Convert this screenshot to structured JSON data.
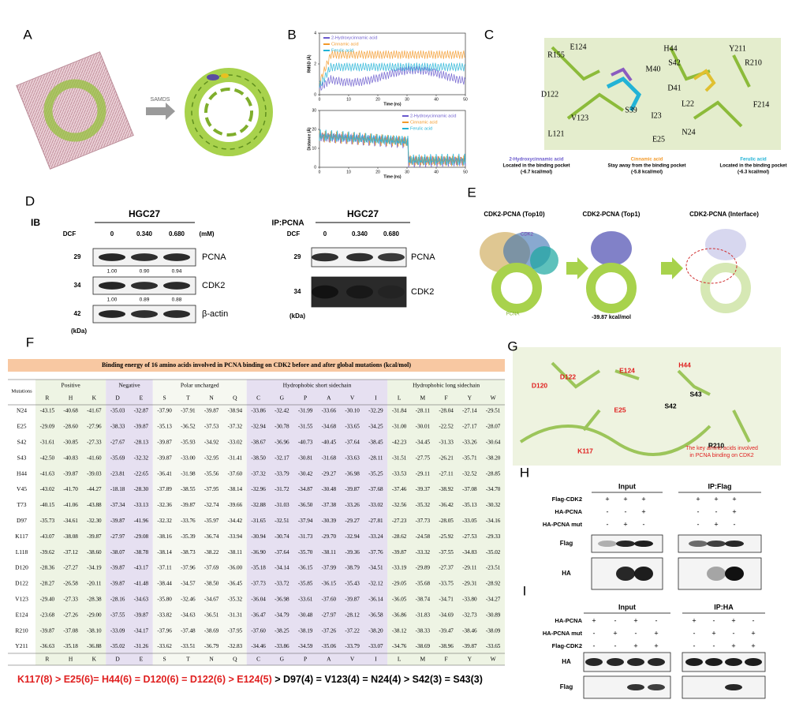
{
  "panel_labels": [
    "A",
    "B",
    "C",
    "D",
    "E",
    "F",
    "G",
    "H",
    "I"
  ],
  "panel_a": {
    "arrow_label": "SAMDS"
  },
  "panel_b": {
    "legend": [
      {
        "name": "2-Hydroxycinnamic acid",
        "color": "#6a5acd"
      },
      {
        "name": "Cinnamic acid",
        "color": "#f39a2b"
      },
      {
        "name": "Ferulic acid",
        "color": "#22b3d6"
      }
    ],
    "top": {
      "y_label": "RMSD (Å)",
      "x_label": "Time (ns)",
      "xticks": [
        0,
        10,
        20,
        30,
        40,
        50
      ],
      "yticks": [
        0,
        2,
        4
      ]
    },
    "bottom": {
      "y_label": "Distance (Å)",
      "x_label": "Time (ns)",
      "xticks": [
        0,
        10,
        20,
        30,
        40,
        50
      ],
      "yticks": [
        0,
        10,
        20,
        30
      ]
    }
  },
  "panel_c": {
    "residues": [
      "R155",
      "E124",
      "H44",
      "S42",
      "Y211",
      "R210",
      "M40",
      "D41",
      "D122",
      "L22",
      "F214",
      "S39",
      "I23",
      "V123",
      "L121",
      "E25",
      "N24"
    ],
    "captions": [
      {
        "name": "2-Hydroxycinnamic acid",
        "color": "#6a5acd",
        "lines": [
          "Located in the binding pocket",
          "(-6.7 kcal/mol)"
        ]
      },
      {
        "name": "Cinnamic acid",
        "color": "#f39a2b",
        "lines": [
          "Stay away from the binding pocket",
          "(-5.8 kcal/mol)"
        ]
      },
      {
        "name": "Ferulic acid",
        "color": "#22b3d6",
        "lines": [
          "Located in the binding pocket",
          "(-6.3 kcal/mol)"
        ]
      }
    ]
  },
  "panel_d": {
    "left": {
      "tag": "IB",
      "cell_line": "HGC27",
      "treatment": "DCF",
      "doses": [
        "0",
        "0.340",
        "0.680"
      ],
      "unit": "(mM)",
      "blots": [
        {
          "marker": "29",
          "protein": "PCNA",
          "quant": [
            "1.00",
            "0.90",
            "0.94"
          ]
        },
        {
          "marker": "34",
          "protein": "CDK2",
          "quant": [
            "1.00",
            "0.89",
            "0.88"
          ]
        },
        {
          "marker": "42",
          "protein": "β-actin"
        }
      ],
      "kda": "(kDa)"
    },
    "right": {
      "tag": "IP:PCNA",
      "cell_line": "HGC27",
      "treatment": "DCF",
      "doses": [
        "0",
        "0.340",
        "0.680"
      ],
      "blots": [
        {
          "marker": "29",
          "protein": "PCNA"
        },
        {
          "marker": "34",
          "protein": "CDK2"
        }
      ],
      "kda": "(kDa)"
    }
  },
  "panel_e": {
    "titles": [
      "CDK2-PCNA (Top10)",
      "CDK2-PCNA (Top1)",
      "CDK2-PCNA (Interface)"
    ],
    "cdk2": "CDK2",
    "pcna": "PCNA",
    "energy": "-39.87 kcal/mol"
  },
  "panel_f": {
    "title": "Binding energy of 16 amino acids involved in PCNA binding on CDK2 before and after global mutations (kcal/mol)",
    "mutation_header": "Mutations",
    "groups": [
      {
        "name": "Positive",
        "color": "#eef4e4",
        "columns": [
          "R",
          "H",
          "K"
        ]
      },
      {
        "name": "Negative",
        "color": "#e6e0f1",
        "columns": [
          "D",
          "E"
        ]
      },
      {
        "name": "Polar uncharged",
        "color": "#f6f8f1",
        "columns": [
          "S",
          "T",
          "N",
          "Q"
        ]
      },
      {
        "name": "Hydrophobic short sidechain",
        "color": "#e6e0f1",
        "columns": [
          "C",
          "G",
          "P",
          "A",
          "V",
          "I"
        ]
      },
      {
        "name": "Hydrophobic long sidechain",
        "color": "#eef4e4",
        "columns": [
          "L",
          "M",
          "F",
          "Y",
          "W"
        ]
      }
    ],
    "rows": [
      {
        "mutation": "N24",
        "values": [
          "-43.15",
          "-40.68",
          "-41.67",
          "-35.03",
          "-32.87",
          "-37.90",
          "-37.91",
          "-39.87",
          "-38.94",
          "-33.86",
          "-32.42",
          "-31.99",
          "-33.66",
          "-30.10",
          "-32.29",
          "-31.84",
          "-28.11",
          "-28.04",
          "-27.14",
          "-29.51"
        ]
      },
      {
        "mutation": "E25",
        "values": [
          "-29.09",
          "-28.60",
          "-27.96",
          "-38.33",
          "-39.87",
          "-35.13",
          "-36.52",
          "-37.53",
          "-37.32",
          "-32.94",
          "-30.78",
          "-31.55",
          "-34.68",
          "-33.65",
          "-34.25",
          "-31.00",
          "-30.01",
          "-22.52",
          "-27.17",
          "-28.07"
        ]
      },
      {
        "mutation": "S42",
        "values": [
          "-31.61",
          "-30.85",
          "-27.33",
          "-27.67",
          "-28.13",
          "-39.87",
          "-35.93",
          "-34.92",
          "-33.02",
          "-38.67",
          "-36.96",
          "-40.73",
          "-40.45",
          "-37.64",
          "-38.45",
          "-42.23",
          "-34.45",
          "-31.33",
          "-33.26",
          "-30.64"
        ]
      },
      {
        "mutation": "S43",
        "values": [
          "-42.50",
          "-40.83",
          "-41.60",
          "-35.69",
          "-32.32",
          "-39.87",
          "-33.00",
          "-32.95",
          "-31.41",
          "-38.50",
          "-32.17",
          "-30.81",
          "-31.68",
          "-33.63",
          "-28.11",
          "-31.51",
          "-27.75",
          "-26.21",
          "-35.71",
          "-38.20"
        ]
      },
      {
        "mutation": "H44",
        "values": [
          "-41.63",
          "-39.87",
          "-39.03",
          "-23.81",
          "-22.65",
          "-36.41",
          "-31.98",
          "-35.56",
          "-37.60",
          "-37.32",
          "-33.79",
          "-30.42",
          "-29.27",
          "-36.98",
          "-35.25",
          "-33.53",
          "-29.11",
          "-27.11",
          "-32.52",
          "-28.85"
        ]
      },
      {
        "mutation": "V45",
        "values": [
          "-43.02",
          "-41.70",
          "-44.27",
          "-18.18",
          "-28.30",
          "-37.89",
          "-38.55",
          "-37.95",
          "-38.14",
          "-32.96",
          "-31.72",
          "-34.87",
          "-30.48",
          "-39.87",
          "-37.68",
          "-37.46",
          "-39.37",
          "-38.92",
          "-37.08",
          "-34.70"
        ]
      },
      {
        "mutation": "T73",
        "values": [
          "-40.15",
          "-41.06",
          "-43.88",
          "-37.34",
          "-33.13",
          "-32.36",
          "-39.87",
          "-32.74",
          "-39.66",
          "-32.88",
          "-31.03",
          "-36.50",
          "-37.38",
          "-33.26",
          "-33.02",
          "-32.56",
          "-35.32",
          "-36.42",
          "-35.13",
          "-30.32"
        ]
      },
      {
        "mutation": "D97",
        "values": [
          "-35.73",
          "-34.61",
          "-32.30",
          "-39.87",
          "-41.96",
          "-32.32",
          "-33.76",
          "-35.97",
          "-34.42",
          "-31.65",
          "-32.51",
          "-37.94",
          "-30.39",
          "-29.27",
          "-27.81",
          "-27.23",
          "-37.73",
          "-28.05",
          "-33.05",
          "-34.16"
        ]
      },
      {
        "mutation": "K117",
        "values": [
          "-43.07",
          "-38.08",
          "-39.87",
          "-27.97",
          "-29.08",
          "-38.16",
          "-35.39",
          "-36.74",
          "-33.94",
          "-30.94",
          "-30.74",
          "-31.73",
          "-29.70",
          "-32.94",
          "-33.24",
          "-28.62",
          "-24.58",
          "-25.92",
          "-27.53",
          "-29.33"
        ]
      },
      {
        "mutation": "L118",
        "values": [
          "-39.62",
          "-37.12",
          "-38.60",
          "-38.07",
          "-38.78",
          "-38.14",
          "-38.73",
          "-38.22",
          "-38.11",
          "-36.90",
          "-37.64",
          "-35.70",
          "-38.11",
          "-39.36",
          "-37.76",
          "-39.87",
          "-33.32",
          "-37.55",
          "-34.83",
          "-35.02"
        ]
      },
      {
        "mutation": "D120",
        "values": [
          "-28.36",
          "-27.27",
          "-34.19",
          "-39.87",
          "-43.17",
          "-37.11",
          "-37.96",
          "-37.69",
          "-36.00",
          "-35.18",
          "-34.14",
          "-36.15",
          "-37.99",
          "-38.79",
          "-34.51",
          "-33.19",
          "-29.89",
          "-27.37",
          "-29.11",
          "-23.51"
        ]
      },
      {
        "mutation": "D122",
        "values": [
          "-28.27",
          "-26.58",
          "-20.11",
          "-39.87",
          "-41.48",
          "-38.44",
          "-34.57",
          "-38.50",
          "-36.45",
          "-37.73",
          "-33.72",
          "-35.85",
          "-36.15",
          "-35.43",
          "-32.12",
          "-29.05",
          "-35.68",
          "-33.75",
          "-29.31",
          "-28.92"
        ]
      },
      {
        "mutation": "V123",
        "values": [
          "-29.40",
          "-27.33",
          "-28.38",
          "-28.16",
          "-34.63",
          "-35.80",
          "-32.46",
          "-34.67",
          "-35.32",
          "-36.04",
          "-36.98",
          "-33.61",
          "-37.60",
          "-39.87",
          "-36.14",
          "-36.05",
          "-38.74",
          "-34.71",
          "-33.80",
          "-34.27"
        ]
      },
      {
        "mutation": "E124",
        "values": [
          "-23.68",
          "-27.26",
          "-29.00",
          "-37.55",
          "-39.87",
          "-33.82",
          "-34.63",
          "-36.51",
          "-31.31",
          "-36.47",
          "-34.79",
          "-30.48",
          "-27.97",
          "-28.12",
          "-36.58",
          "-36.86",
          "-31.83",
          "-34.69",
          "-32.73",
          "-30.89"
        ]
      },
      {
        "mutation": "R210",
        "values": [
          "-39.87",
          "-37.08",
          "-38.10",
          "-33.09",
          "-34.17",
          "-37.96",
          "-37.48",
          "-38.69",
          "-37.95",
          "-37.60",
          "-38.25",
          "-38.19",
          "-37.26",
          "-37.22",
          "-38.20",
          "-38.12",
          "-38.33",
          "-39.47",
          "-38.46",
          "-38.09"
        ]
      },
      {
        "mutation": "Y211",
        "values": [
          "-36.63",
          "-35.18",
          "-36.88",
          "-35.02",
          "-31.26",
          "-33.62",
          "-33.51",
          "-36.79",
          "-32.83",
          "-34.46",
          "-33.86",
          "-34.59",
          "-35.06",
          "-33.79",
          "-33.07",
          "-34.76",
          "-38.69",
          "-38.96",
          "-39.87",
          "-33.65"
        ]
      }
    ],
    "ranking": {
      "key": "K117(8) > E25(6)= H44(6) = D120(6) = D122(6) > E124(5)",
      "rest": " > D97(4) = V123(4) = N24(4) > S42(3) = S43(3)"
    }
  },
  "panel_g": {
    "residues": [
      "D122",
      "E124",
      "H44",
      "D120",
      "S43",
      "S42",
      "E25",
      "R210",
      "K117"
    ],
    "note": [
      "The key amino acids involved",
      "in PCNA binding on CDK2"
    ]
  },
  "panel_h": {
    "headers": [
      "Input",
      "IP:Flag"
    ],
    "rows": [
      {
        "label": "Flag-CDK2",
        "signs": [
          "+",
          "+",
          "+",
          "+",
          "+",
          "+"
        ]
      },
      {
        "label": "HA-PCNA",
        "signs": [
          "-",
          "-",
          "+",
          "-",
          "-",
          "+"
        ]
      },
      {
        "label": "HA-PCNA mut",
        "signs": [
          "-",
          "+",
          "-",
          "-",
          "+",
          "-"
        ]
      }
    ],
    "blots": [
      "Flag",
      "HA"
    ]
  },
  "panel_i": {
    "headers": [
      "Input",
      "IP:HA"
    ],
    "rows": [
      {
        "label": "HA-PCNA",
        "signs": [
          "+",
          "-",
          "+",
          "-",
          "+",
          "-",
          "+",
          "-"
        ]
      },
      {
        "label": "HA-PCNA mut",
        "signs": [
          "-",
          "+",
          "-",
          "+",
          "-",
          "+",
          "-",
          "+"
        ]
      },
      {
        "label": "Flag-CDK2",
        "signs": [
          "-",
          "-",
          "+",
          "+",
          "-",
          "-",
          "+",
          "+"
        ]
      }
    ],
    "blots": [
      "HA",
      "Flag"
    ]
  }
}
